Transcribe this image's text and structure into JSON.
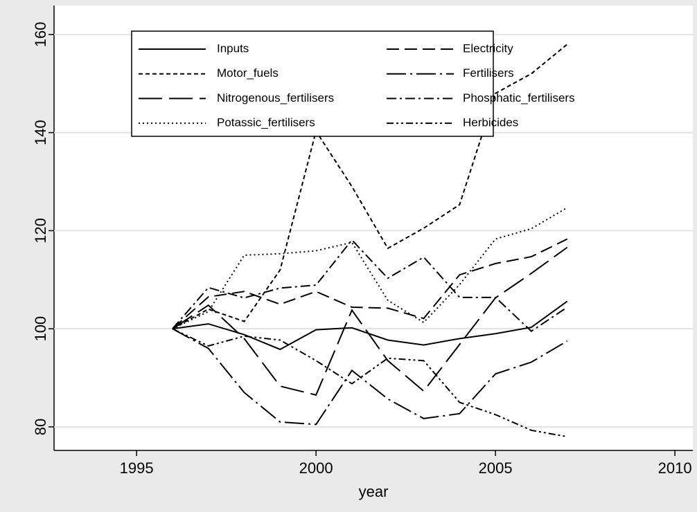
{
  "chart_data": {
    "type": "line",
    "x": [
      1996,
      1997,
      1998,
      1999,
      2000,
      2001,
      2002,
      2003,
      2004,
      2005,
      2006,
      2007
    ],
    "series": [
      {
        "name": "Inputs",
        "color": "#000000",
        "dash": "none",
        "values": [
          100,
          101,
          98.8,
          95.8,
          99.8,
          100.2,
          97.7,
          96.7,
          98,
          99,
          100.3,
          105.6
        ]
      },
      {
        "name": "Electricity",
        "color": "#000000",
        "dash": "18 8",
        "values": [
          100,
          106.5,
          107.6,
          105,
          107.6,
          104.4,
          104.2,
          102.1,
          111,
          113.3,
          114.7,
          118.3
        ]
      },
      {
        "name": "Motor_fuels",
        "color": "#000000",
        "dash": "6 4",
        "values": [
          100,
          104,
          101.5,
          112,
          140.3,
          129,
          116.4,
          120.5,
          125.3,
          148,
          152,
          158
        ]
      },
      {
        "name": "Fertilisers",
        "color": "#000000",
        "dash": "28 6 3 6",
        "values": [
          100,
          96,
          87,
          81,
          80.5,
          91.5,
          85.7,
          81.7,
          82.7,
          90.8,
          93.2,
          97.5
        ]
      },
      {
        "name": "Nitrogenous_fertilisers",
        "color": "#000000",
        "dash": "34 10",
        "values": [
          100,
          104.8,
          98,
          88.3,
          86.5,
          103.8,
          93.5,
          87.3,
          96.8,
          106.3,
          111.3,
          116.6
        ]
      },
      {
        "name": "Phosphatic_fertilisers",
        "color": "#000000",
        "dash": "14 5 3 5",
        "values": [
          100,
          108.4,
          106.3,
          108.3,
          108.9,
          118.1,
          110.3,
          114.6,
          106.4,
          106.4,
          99.5,
          104.4
        ]
      },
      {
        "name": "Potassic_fertilisers",
        "color": "#000000",
        "dash": "2 4",
        "values": [
          100,
          103.5,
          115,
          115.3,
          115.9,
          117.6,
          105.8,
          101.3,
          109,
          118.3,
          120.4,
          124.7
        ]
      },
      {
        "name": "Herbicides",
        "color": "#000000",
        "dash": "10 4 3 4 3 4",
        "values": [
          100,
          96.5,
          98.5,
          97.7,
          93.5,
          88.8,
          94,
          93.5,
          85,
          82.5,
          79.3,
          78
        ]
      }
    ],
    "xlabel": "year",
    "xlim": [
      1992.7,
      2010.5
    ],
    "xticks": [
      1995,
      2000,
      2005,
      2010
    ],
    "ylim": [
      75.2,
      165.9
    ],
    "yticks": [
      80,
      100,
      120,
      140,
      160
    ],
    "grid": true,
    "legend": "top"
  }
}
